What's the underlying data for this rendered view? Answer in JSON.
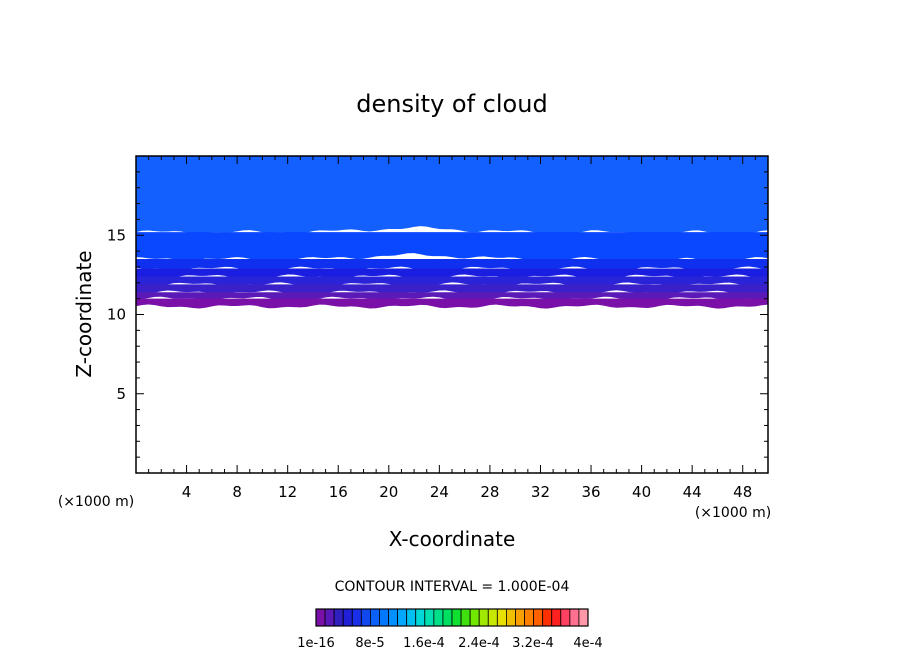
{
  "chart_data": {
    "type": "heatmap",
    "title": "density of cloud",
    "xlabel": "X-coordinate",
    "ylabel": "Z-coordinate",
    "x_unit": "(×1000 m)",
    "y_unit": "(×1000 m)",
    "xlim": [
      0,
      50
    ],
    "ylim": [
      0,
      20
    ],
    "x_ticks": [
      4,
      8,
      12,
      16,
      20,
      24,
      28,
      32,
      36,
      40,
      44,
      48
    ],
    "y_ticks": [
      5,
      10,
      15
    ],
    "cloud_base_km": 10.5,
    "cloud_top_km": 20,
    "levels": [
      {
        "from_km": 10.5,
        "to_km": 11.0,
        "color": "#7a10a8"
      },
      {
        "from_km": 11.0,
        "to_km": 11.4,
        "color": "#5b1ab8"
      },
      {
        "from_km": 11.4,
        "to_km": 11.9,
        "color": "#3a20c8"
      },
      {
        "from_km": 11.9,
        "to_km": 12.4,
        "color": "#2a24d8"
      },
      {
        "from_km": 12.4,
        "to_km": 12.9,
        "color": "#1a1ee0"
      },
      {
        "from_km": 12.9,
        "to_km": 13.5,
        "color": "#1030f0"
      },
      {
        "from_km": 13.5,
        "to_km": 15.2,
        "color": "#0a48ff"
      },
      {
        "from_km": 15.2,
        "to_km": 20.0,
        "color": "#1460ff"
      }
    ],
    "contour_interval_label": "CONTOUR INTERVAL = 1.000E-04",
    "colorbar_colors": [
      "#7a10a8",
      "#5a18b8",
      "#3020c0",
      "#2020d8",
      "#1a30e8",
      "#1248f0",
      "#0a60f8",
      "#0078ff",
      "#0090ff",
      "#00a8ff",
      "#00c0f0",
      "#00d8d8",
      "#00e0b0",
      "#00e088",
      "#00e060",
      "#10e030",
      "#40e010",
      "#70e800",
      "#a0e800",
      "#c8e800",
      "#e8e000",
      "#f0c000",
      "#f8a000",
      "#ff8000",
      "#ff6000",
      "#ff3000",
      "#ff2020",
      "#ff4060",
      "#ff7090",
      "#ff98a8"
    ],
    "colorbar_labels": [
      "1e-16",
      "8e-5",
      "1.6e-4",
      "2.4e-4",
      "3.2e-4",
      "4e-4"
    ]
  }
}
